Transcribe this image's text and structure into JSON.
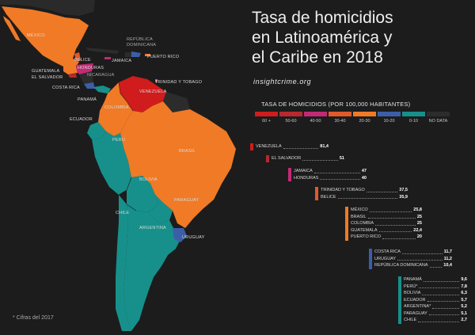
{
  "title": "Tasa de homicidios\nen Latinoamérica y\nel Caribe en 2018",
  "source": "insightcrime.org",
  "footnote": "* Cifras del 2017",
  "legend": {
    "title": "TASA DE HOMICIDIOS (POR 100,000 HABITANTES)",
    "categories": [
      {
        "label": "60 +",
        "color": "#d01c1c"
      },
      {
        "label": "50-60",
        "color": "#b7282f"
      },
      {
        "label": "40-50",
        "color": "#c22a74"
      },
      {
        "label": "30-40",
        "color": "#e05a2a"
      },
      {
        "label": "20-30",
        "color": "#f07a26"
      },
      {
        "label": "10-20",
        "color": "#3c5ea8"
      },
      {
        "label": "0-10",
        "color": "#17908b"
      },
      {
        "label": "NO DATA",
        "color": "#2c2c2c"
      }
    ]
  },
  "groups": [
    {
      "color": "#d01c1c",
      "rows": [
        {
          "country": "VENEZUELA",
          "value": "81,4"
        }
      ]
    },
    {
      "color": "#b7282f",
      "rows": [
        {
          "country": "EL SALVADOR",
          "value": "51"
        }
      ]
    },
    {
      "color": "#c22a74",
      "rows": [
        {
          "country": "JAMAICA",
          "value": "47"
        },
        {
          "country": "HONDURAS",
          "value": "40"
        }
      ]
    },
    {
      "color": "#e05a2a",
      "rows": [
        {
          "country": "TRINIDAD Y TOBAGO",
          "value": "37,5"
        },
        {
          "country": "BELICE",
          "value": "35,9"
        }
      ]
    },
    {
      "color": "#f07a26",
      "rows": [
        {
          "country": "MÉXICO",
          "value": "25,8"
        },
        {
          "country": "BRASIL",
          "value": "25"
        },
        {
          "country": "COLOMBIA",
          "value": "25"
        },
        {
          "country": "GUATEMALA",
          "value": "22,4"
        },
        {
          "country": "PUERTO RICO",
          "value": "20"
        }
      ]
    },
    {
      "color": "#3c5ea8",
      "rows": [
        {
          "country": "COSTA RICA",
          "value": "11,7"
        },
        {
          "country": "URUGUAY",
          "value": "11,2"
        },
        {
          "country": "REPÚBLICA DOMINICANA",
          "value": "10,4"
        }
      ]
    },
    {
      "color": "#17908b",
      "rows": [
        {
          "country": "PANAMÁ",
          "value": "9,6"
        },
        {
          "country": "PERÚ*",
          "value": "7,8"
        },
        {
          "country": "BOLIVIA",
          "value": "6,3"
        },
        {
          "country": "ECUADOR",
          "value": "5,7"
        },
        {
          "country": "ARGENTINA*",
          "value": "5,2"
        },
        {
          "country": "PARAGUAY",
          "value": "5,1"
        },
        {
          "country": "CHILE",
          "value": "2,7"
        }
      ]
    }
  ],
  "map_labels": [
    {
      "text": "MÉXICO",
      "dim": false
    },
    {
      "text": "BELICE",
      "dim": false
    },
    {
      "text": "JAMAICA",
      "dim": false
    },
    {
      "text": "REPÚBLICA\nDOMINICANA",
      "dim": true
    },
    {
      "text": "PUERTO RICO",
      "dim": false
    },
    {
      "text": "GUATEMALA",
      "dim": false
    },
    {
      "text": "HONDURAS",
      "dim": false
    },
    {
      "text": "EL SALVADOR",
      "dim": false
    },
    {
      "text": "NICARAGUA",
      "dim": true
    },
    {
      "text": "TRINIDAD Y TOBAGO",
      "dim": false
    },
    {
      "text": "COSTA RICA",
      "dim": false
    },
    {
      "text": "VENEZUELA",
      "dim": false
    },
    {
      "text": "PANAMÁ",
      "dim": false
    },
    {
      "text": "COLOMBIA",
      "dim": false
    },
    {
      "text": "ECUADOR",
      "dim": false
    },
    {
      "text": "BRASIL",
      "dim": false
    },
    {
      "text": "PERÚ",
      "dim": false
    },
    {
      "text": "BOLIVIA",
      "dim": false
    },
    {
      "text": "PARAGUAY",
      "dim": false
    },
    {
      "text": "CHILE",
      "dim": false
    },
    {
      "text": "ARGENTINA",
      "dim": false
    },
    {
      "text": "URUGUAY",
      "dim": false
    }
  ]
}
